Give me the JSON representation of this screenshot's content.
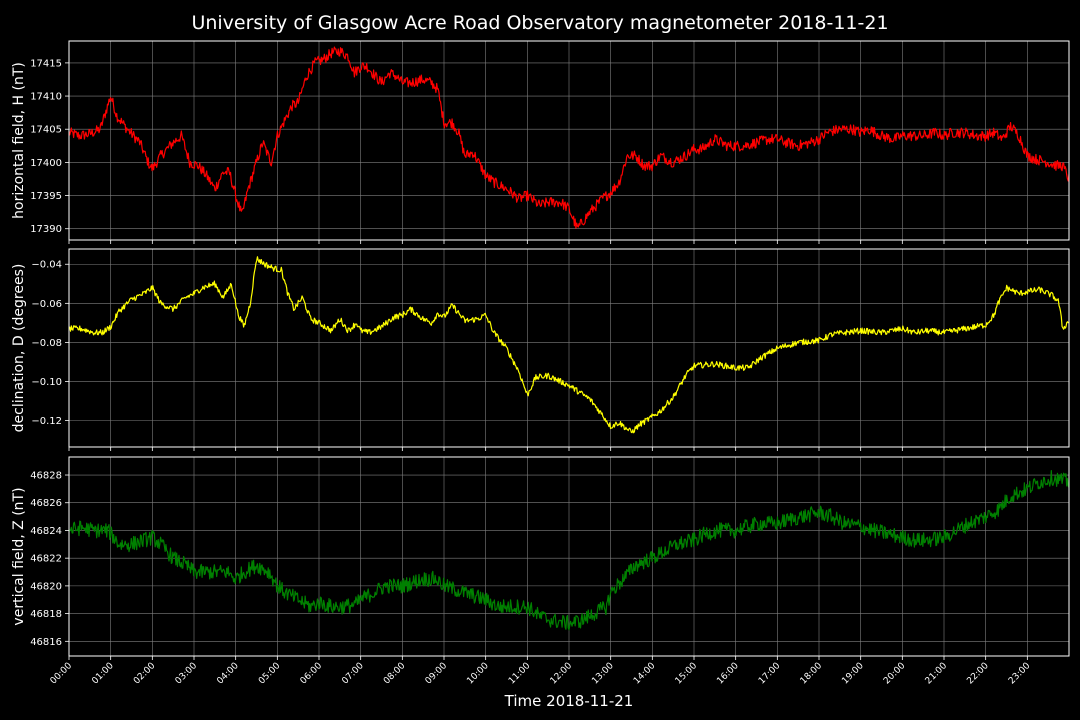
{
  "title": "University of Glasgow Acre Road Observatory magnetometer 2018-11-21",
  "xlabel": "Time 2018-11-21",
  "colors": {
    "background": "#000000",
    "axes": "#ffffff",
    "grid": "#7f7f7f"
  },
  "chart_data": [
    {
      "type": "line",
      "ylabel": "horizontal field, H (nT)",
      "color": "#ff0000",
      "xlim": [
        0,
        24
      ],
      "ylim": [
        17388.3,
        17418.3
      ],
      "yticks": [
        17390,
        17395,
        17400,
        17405,
        17410,
        17415
      ],
      "ytick_labels": [
        "17390",
        "17395",
        "17400",
        "17405",
        "17410",
        "17415"
      ],
      "grid": true,
      "noise": 0.8,
      "x": [
        0,
        0.25,
        0.5,
        0.75,
        0.85,
        1.0,
        1.15,
        1.4,
        1.7,
        1.9,
        2.0,
        2.2,
        2.5,
        2.7,
        2.9,
        3.1,
        3.3,
        3.5,
        3.7,
        3.85,
        4.0,
        4.15,
        4.3,
        4.5,
        4.65,
        4.85,
        5.0,
        5.15,
        5.35,
        5.5,
        5.7,
        5.9,
        6.1,
        6.3,
        6.5,
        6.7,
        6.85,
        7.0,
        7.15,
        7.35,
        7.5,
        7.7,
        7.85,
        8.0,
        8.2,
        8.5,
        8.7,
        8.85,
        9.0,
        9.2,
        9.35,
        9.5,
        9.7,
        10.0,
        10.2,
        10.5,
        10.8,
        11.0,
        11.3,
        11.5,
        11.8,
        12.0,
        12.2,
        12.5,
        12.8,
        13.0,
        13.2,
        13.4,
        13.6,
        13.8,
        14.0,
        14.2,
        14.5,
        14.8,
        15.0,
        15.2,
        15.5,
        15.8,
        16.0,
        16.2,
        16.5,
        16.8,
        17.0,
        17.2,
        17.5,
        17.8,
        18.0,
        18.2,
        18.5,
        18.8,
        19.0,
        19.2,
        19.5,
        19.8,
        20.0,
        20.2,
        20.5,
        20.8,
        21.0,
        21.2,
        21.5,
        21.8,
        22.0,
        22.2,
        22.4,
        22.6,
        22.8,
        23.0,
        23.2,
        23.5,
        23.7,
        23.85,
        24.0
      ],
      "y": [
        17404.5,
        17404,
        17404.3,
        17405,
        17407,
        17410,
        17407,
        17405,
        17403,
        17400,
        17399,
        17401,
        17403,
        17404,
        17400,
        17399.5,
        17398,
        17396,
        17398.5,
        17398.5,
        17395,
        17392,
        17396,
        17400,
        17403,
        17400,
        17404,
        17406,
        17408.5,
        17409,
        17413,
        17415,
        17415.5,
        17416.5,
        17416.8,
        17416,
        17413.5,
        17414.5,
        17414.5,
        17413,
        17412,
        17413.5,
        17413,
        17412,
        17412,
        17412.5,
        17412,
        17411,
        17406,
        17406,
        17404.5,
        17401,
        17401.5,
        17398,
        17397,
        17396,
        17394.5,
        17395,
        17393.5,
        17394,
        17394,
        17393,
        17390,
        17392.5,
        17394.5,
        17395.5,
        17397,
        17401,
        17401,
        17399.5,
        17399.5,
        17401,
        17400,
        17401,
        17402,
        17402,
        17403.5,
        17402.5,
        17402.5,
        17402.5,
        17403,
        17403.5,
        17403.5,
        17403,
        17402.5,
        17403,
        17403.5,
        17404.5,
        17405,
        17405,
        17404.5,
        17405,
        17404,
        17403.5,
        17404,
        17404,
        17404,
        17404.5,
        17404,
        17404.5,
        17404.5,
        17404,
        17404,
        17404.5,
        17403.5,
        17405.5,
        17404,
        17401,
        17400.5,
        17400,
        17399.5,
        17399.5,
        17397.5
      ]
    },
    {
      "type": "line",
      "ylabel": "declination, D (degrees)",
      "color": "#ffff00",
      "xlim": [
        0,
        24
      ],
      "ylim": [
        -0.1335,
        -0.0322
      ],
      "yticks": [
        -0.12,
        -0.1,
        -0.08,
        -0.06,
        -0.04
      ],
      "ytick_labels": [
        "−0.12",
        "−0.10",
        "−0.08",
        "−0.06",
        "−0.04"
      ],
      "grid": true,
      "noise": 0.0015,
      "x": [
        0,
        0.3,
        0.6,
        0.8,
        1.0,
        1.2,
        1.5,
        1.8,
        2.0,
        2.2,
        2.5,
        2.8,
        3.0,
        3.2,
        3.5,
        3.7,
        3.9,
        4.05,
        4.2,
        4.35,
        4.5,
        4.7,
        4.9,
        5.1,
        5.25,
        5.4,
        5.6,
        5.8,
        6.0,
        6.3,
        6.5,
        6.7,
        6.9,
        7.0,
        7.2,
        7.5,
        7.8,
        8.0,
        8.2,
        8.5,
        8.7,
        8.85,
        9.0,
        9.2,
        9.5,
        9.8,
        10.0,
        10.2,
        10.5,
        10.8,
        11.0,
        11.2,
        11.5,
        12.0,
        12.5,
        12.8,
        13.0,
        13.2,
        13.5,
        13.7,
        14.0,
        14.2,
        14.5,
        14.8,
        15.0,
        15.5,
        16.0,
        16.3,
        16.6,
        17.0,
        17.5,
        18.0,
        18.3,
        18.6,
        19.0,
        19.5,
        20.0,
        20.3,
        20.6,
        21.0,
        21.5,
        22.0,
        22.2,
        22.3,
        22.5,
        22.8,
        23.0,
        23.3,
        23.6,
        23.75,
        23.85,
        24.0
      ],
      "y": [
        -0.073,
        -0.073,
        -0.075,
        -0.075,
        -0.072,
        -0.064,
        -0.058,
        -0.055,
        -0.052,
        -0.06,
        -0.063,
        -0.057,
        -0.055,
        -0.052,
        -0.05,
        -0.057,
        -0.05,
        -0.065,
        -0.072,
        -0.06,
        -0.037,
        -0.04,
        -0.042,
        -0.043,
        -0.055,
        -0.063,
        -0.057,
        -0.068,
        -0.07,
        -0.074,
        -0.068,
        -0.074,
        -0.07,
        -0.074,
        -0.075,
        -0.072,
        -0.067,
        -0.066,
        -0.063,
        -0.068,
        -0.07,
        -0.065,
        -0.067,
        -0.061,
        -0.069,
        -0.068,
        -0.066,
        -0.075,
        -0.083,
        -0.095,
        -0.107,
        -0.098,
        -0.097,
        -0.102,
        -0.109,
        -0.117,
        -0.123,
        -0.121,
        -0.126,
        -0.122,
        -0.118,
        -0.115,
        -0.108,
        -0.097,
        -0.092,
        -0.091,
        -0.093,
        -0.093,
        -0.088,
        -0.083,
        -0.08,
        -0.079,
        -0.076,
        -0.075,
        -0.074,
        -0.075,
        -0.073,
        -0.075,
        -0.074,
        -0.075,
        -0.073,
        -0.071,
        -0.066,
        -0.06,
        -0.052,
        -0.055,
        -0.054,
        -0.053,
        -0.056,
        -0.059,
        -0.073,
        -0.069
      ]
    },
    {
      "type": "line",
      "ylabel": "vertical field, Z (nT)",
      "color": "#008000",
      "xlim": [
        0,
        24
      ],
      "ylim": [
        46814.94,
        46829.3
      ],
      "yticks": [
        46816,
        46818,
        46820,
        46822,
        46824,
        46826,
        46828
      ],
      "ytick_labels": [
        "46816",
        "46818",
        "46820",
        "46822",
        "46824",
        "46826",
        "46828"
      ],
      "grid": true,
      "noise": 0.55,
      "x": [
        0,
        0.3,
        0.6,
        0.9,
        1.0,
        1.2,
        1.5,
        1.8,
        2.0,
        2.2,
        2.5,
        2.8,
        3.0,
        3.3,
        3.5,
        3.8,
        4.0,
        4.2,
        4.5,
        4.8,
        5.0,
        5.2,
        5.5,
        5.8,
        6.0,
        6.3,
        6.6,
        6.9,
        7.0,
        7.3,
        7.6,
        8.0,
        8.5,
        8.8,
        9.0,
        9.5,
        10.0,
        10.3,
        10.6,
        11.0,
        11.3,
        11.6,
        12.0,
        12.3,
        12.6,
        12.9,
        13.0,
        13.3,
        13.6,
        14.0,
        14.3,
        14.6,
        15.0,
        15.3,
        15.6,
        16.0,
        16.3,
        16.6,
        17.0,
        17.3,
        17.6,
        18.0,
        18.3,
        18.6,
        19.0,
        19.3,
        19.6,
        20.0,
        20.3,
        20.6,
        21.0,
        21.3,
        21.6,
        22.0,
        22.3,
        22.6,
        23.0,
        23.3,
        23.6,
        24.0
      ],
      "y": [
        46824,
        46824.2,
        46824,
        46824,
        46823.8,
        46823,
        46823,
        46823.3,
        46823.5,
        46823,
        46822,
        46821.5,
        46821,
        46821,
        46821,
        46821,
        46820.5,
        46821,
        46821.5,
        46821,
        46820,
        46819.5,
        46819,
        46818.5,
        46818.8,
        46818.5,
        46818.5,
        46818.7,
        46819,
        46819.5,
        46820,
        46820,
        46820.5,
        46820.5,
        46820,
        46819.5,
        46819,
        46818.5,
        46818.5,
        46818.5,
        46817.8,
        46817.5,
        46817.3,
        46817.5,
        46818,
        46818.5,
        46819.5,
        46820.5,
        46821.5,
        46822,
        46822.5,
        46823,
        46823.3,
        46823.8,
        46824,
        46824,
        46824.3,
        46824.5,
        46824.5,
        46824.8,
        46825,
        46825.3,
        46825,
        46824.5,
        46824.3,
        46824,
        46823.8,
        46823.5,
        46823.3,
        46823.3,
        46823.5,
        46824,
        46824.5,
        46825,
        46825.5,
        46826.5,
        46827,
        46827.5,
        46827.8,
        46827.5
      ]
    }
  ],
  "xticks": {
    "values": [
      0,
      1,
      2,
      3,
      4,
      5,
      6,
      7,
      8,
      9,
      10,
      11,
      12,
      13,
      14,
      15,
      16,
      17,
      18,
      19,
      20,
      21,
      22,
      23
    ],
    "labels": [
      "00:00",
      "01:00",
      "02:00",
      "03:00",
      "04:00",
      "05:00",
      "06:00",
      "07:00",
      "08:00",
      "09:00",
      "10:00",
      "11:00",
      "12:00",
      "13:00",
      "14:00",
      "15:00",
      "16:00",
      "17:00",
      "18:00",
      "19:00",
      "20:00",
      "21:00",
      "22:00",
      "23:00"
    ]
  }
}
